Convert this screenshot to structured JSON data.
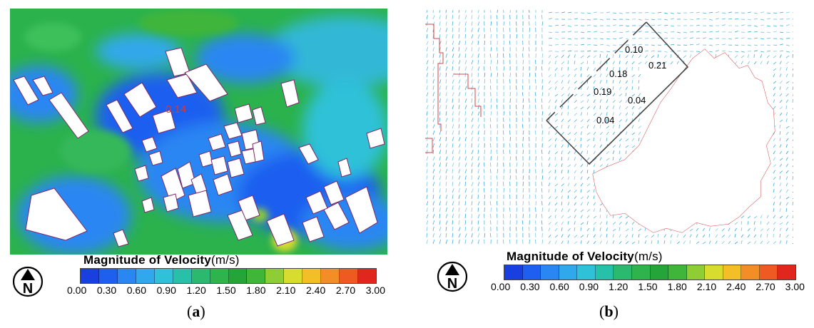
{
  "panel_a": {
    "velocity_label": "0.14",
    "legend": {
      "title": "Magnitude of Velocity",
      "unit": "(m/s)",
      "ticks": [
        "0.00",
        "0.30",
        "0.60",
        "0.90",
        "1.20",
        "1.50",
        "1.80",
        "2.10",
        "2.40",
        "2.70",
        "3.00"
      ]
    },
    "caption": {
      "open": "(",
      "letter": "a",
      "close": ")"
    }
  },
  "panel_b": {
    "velocity_labels": [
      "0.10",
      "0.21",
      "0.18",
      "0.19",
      "0.04",
      "0.04"
    ],
    "legend": {
      "title": "Magnitude of Velocity",
      "unit": "(m/s)",
      "ticks": [
        "0.00",
        "0.30",
        "0.60",
        "0.90",
        "1.20",
        "1.50",
        "1.80",
        "2.10",
        "2.40",
        "2.70",
        "3.00"
      ]
    },
    "caption": {
      "open": "(",
      "letter": "b",
      "close": ")"
    }
  },
  "colors": {
    "scale": [
      "#1a3fe0",
      "#1f5ff0",
      "#2a86f2",
      "#30a8ec",
      "#2fc1d8",
      "#27c0a8",
      "#2bb96f",
      "#2fb34c",
      "#25a43a",
      "#3fb53a",
      "#8fcd34",
      "#d8dc2f",
      "#f3bf27",
      "#f38d25",
      "#ee5a21",
      "#e0261d"
    ],
    "ground_a": "#2bb24c",
    "arrow_b": "#29a3d6",
    "building_edge": "#d24a4a"
  },
  "north_symbol": "N"
}
